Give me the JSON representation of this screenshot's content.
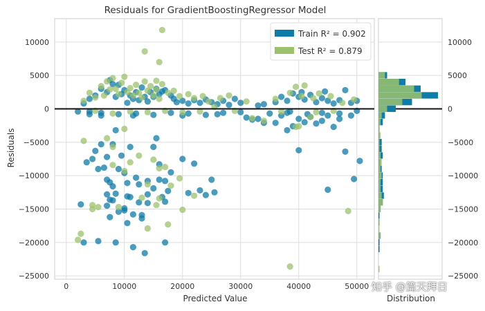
{
  "chart_data": {
    "type": "scatter",
    "title": "Residuals for GradientBoostingRegressor Model",
    "xlabel": "Predicted Value",
    "ylabel": "Residuals",
    "hist_xlabel": "Distribution",
    "xlim": [
      -2000,
      53000
    ],
    "ylim": [
      -25500,
      13500
    ],
    "xticks": [
      0,
      10000,
      20000,
      30000,
      40000,
      50000
    ],
    "yticks": [
      -25000,
      -20000,
      -15000,
      -10000,
      -5000,
      0,
      5000,
      10000
    ],
    "grid": true,
    "legend_position": "top-right",
    "legend": [
      {
        "label": "Train R² = 0.902",
        "color": "#0e7ba8"
      },
      {
        "label": "Test R² = 0.879",
        "color": "#9bc26b"
      }
    ],
    "zero_line": true,
    "series": [
      {
        "name": "Train",
        "color": "#0e7ba8",
        "points": [
          [
            2000,
            -400
          ],
          [
            2500,
            -14300
          ],
          [
            3000,
            -20000
          ],
          [
            3500,
            -8000
          ],
          [
            4000,
            -400
          ],
          [
            4500,
            -7500
          ],
          [
            5000,
            -6300
          ],
          [
            5500,
            -9000
          ],
          [
            5500,
            -19800
          ],
          [
            6000,
            -5300
          ],
          [
            6000,
            -600
          ],
          [
            6500,
            -8800
          ],
          [
            7000,
            -7200
          ],
          [
            7000,
            -10600
          ],
          [
            7000,
            -12800
          ],
          [
            7000,
            -14500
          ],
          [
            7500,
            -16200
          ],
          [
            7500,
            -11000
          ],
          [
            7500,
            -13600
          ],
          [
            8000,
            -13700
          ],
          [
            8000,
            -11600
          ],
          [
            8000,
            -5300
          ],
          [
            8500,
            -3200
          ],
          [
            8500,
            -20000
          ],
          [
            8500,
            -12700
          ],
          [
            9000,
            -15400
          ],
          [
            9000,
            -9000
          ],
          [
            9500,
            -7000
          ],
          [
            10000,
            -9600
          ],
          [
            10000,
            -15200
          ],
          [
            10000,
            -14900
          ],
          [
            10500,
            -11100
          ],
          [
            10500,
            -13100
          ],
          [
            10500,
            -17100
          ],
          [
            11000,
            -5700
          ],
          [
            11000,
            -13200
          ],
          [
            11500,
            -1000
          ],
          [
            11500,
            -15800
          ],
          [
            11500,
            -20700
          ],
          [
            12000,
            -10300
          ],
          [
            12500,
            -14000
          ],
          [
            12500,
            -11300
          ],
          [
            13000,
            -15900
          ],
          [
            13000,
            -16400
          ],
          [
            13500,
            -21600
          ],
          [
            14000,
            -10800
          ],
          [
            14000,
            -12800
          ],
          [
            14000,
            -14100
          ],
          [
            15000,
            -11900
          ],
          [
            15000,
            -5700
          ],
          [
            15500,
            -4400
          ],
          [
            16000,
            -8300
          ],
          [
            16000,
            -10600
          ],
          [
            16500,
            -13200
          ],
          [
            17000,
            -13900
          ],
          [
            17000,
            -10800
          ],
          [
            17000,
            -20000
          ],
          [
            17500,
            -12300
          ],
          [
            18000,
            -9500
          ],
          [
            20000,
            -1000
          ],
          [
            20000,
            -7500
          ],
          [
            21000,
            -12600
          ],
          [
            22000,
            -8200
          ],
          [
            23000,
            -12200
          ],
          [
            24000,
            -12900
          ],
          [
            25000,
            -10600
          ],
          [
            25500,
            -12500
          ],
          [
            26000,
            -800
          ],
          [
            31000,
            -1300
          ],
          [
            32000,
            -1600
          ],
          [
            33000,
            -1500
          ],
          [
            34000,
            -2100
          ],
          [
            36000,
            -2100
          ],
          [
            37000,
            -1000
          ],
          [
            38000,
            -600
          ],
          [
            38000,
            -3200
          ],
          [
            39000,
            -2600
          ],
          [
            40000,
            -1500
          ],
          [
            40000,
            -6200
          ],
          [
            41000,
            -2000
          ],
          [
            42000,
            -1200
          ],
          [
            43000,
            -2200
          ],
          [
            44000,
            -1800
          ],
          [
            45000,
            -1000
          ],
          [
            45000,
            -12100
          ],
          [
            46000,
            -2700
          ],
          [
            47000,
            -1500
          ],
          [
            48000,
            -6400
          ],
          [
            49000,
            -1000
          ],
          [
            49500,
            -10500
          ],
          [
            50500,
            -7800
          ],
          [
            3000,
            800
          ],
          [
            4000,
            1500
          ],
          [
            5000,
            2000
          ],
          [
            6000,
            3000
          ],
          [
            7000,
            2500
          ],
          [
            7500,
            4300
          ],
          [
            8000,
            3700
          ],
          [
            8500,
            1800
          ],
          [
            9000,
            3600
          ],
          [
            9500,
            2200
          ],
          [
            10000,
            2800
          ],
          [
            10500,
            900
          ],
          [
            11000,
            2000
          ],
          [
            11500,
            1500
          ],
          [
            12000,
            2500
          ],
          [
            12500,
            1300
          ],
          [
            13000,
            3200
          ],
          [
            13500,
            1800
          ],
          [
            14000,
            1100
          ],
          [
            14500,
            2500
          ],
          [
            15000,
            1800
          ],
          [
            15500,
            3000
          ],
          [
            16000,
            2200
          ],
          [
            16500,
            2600
          ],
          [
            17000,
            2800
          ],
          [
            18000,
            2000
          ],
          [
            18500,
            1500
          ],
          [
            19000,
            1000
          ],
          [
            20000,
            1200
          ],
          [
            21000,
            800
          ],
          [
            22000,
            1300
          ],
          [
            23000,
            900
          ],
          [
            24000,
            1400
          ],
          [
            25000,
            1000
          ],
          [
            26000,
            700
          ],
          [
            27000,
            1200
          ],
          [
            28000,
            600
          ],
          [
            29000,
            1500
          ],
          [
            30000,
            900
          ],
          [
            33000,
            500
          ],
          [
            34000,
            700
          ],
          [
            36000,
            1000
          ],
          [
            37000,
            1800
          ],
          [
            38000,
            1200
          ],
          [
            39000,
            2300
          ],
          [
            40000,
            1800
          ],
          [
            40500,
            2500
          ],
          [
            41000,
            1400
          ],
          [
            42000,
            2100
          ],
          [
            43000,
            1000
          ],
          [
            44000,
            1600
          ],
          [
            44500,
            2600
          ],
          [
            45000,
            1200
          ],
          [
            46000,
            800
          ],
          [
            47000,
            1300
          ],
          [
            48000,
            2800
          ],
          [
            49000,
            900
          ],
          [
            50000,
            1200
          ],
          [
            4000,
            -800
          ],
          [
            6000,
            -1000
          ],
          [
            9000,
            -800
          ],
          [
            12000,
            -700
          ],
          [
            15000,
            -900
          ],
          [
            18000,
            -600
          ],
          [
            21000,
            -700
          ],
          [
            24000,
            -900
          ],
          [
            27000,
            -600
          ],
          [
            30000,
            -500
          ],
          [
            35000,
            -700
          ],
          [
            38500,
            -400
          ],
          [
            41500,
            -800
          ],
          [
            44000,
            -600
          ],
          [
            47000,
            -700
          ],
          [
            50000,
            -300
          ]
        ]
      },
      {
        "name": "Test",
        "color": "#9bc26b",
        "points": [
          [
            2000,
            -19600
          ],
          [
            2500,
            -18700
          ],
          [
            3000,
            -4800
          ],
          [
            4500,
            -15000
          ],
          [
            4500,
            -14400
          ],
          [
            5500,
            -14700
          ],
          [
            7000,
            -4400
          ],
          [
            8000,
            -5700
          ],
          [
            8000,
            -8400
          ],
          [
            9000,
            -14700
          ],
          [
            10000,
            -9300
          ],
          [
            10000,
            -3000
          ],
          [
            11000,
            -8000
          ],
          [
            12500,
            -7000
          ],
          [
            13000,
            -13300
          ],
          [
            13500,
            8600
          ],
          [
            14000,
            -17900
          ],
          [
            14000,
            -11300
          ],
          [
            15000,
            -7600
          ],
          [
            15500,
            -14400
          ],
          [
            16000,
            -8900
          ],
          [
            16000,
            -13400
          ],
          [
            16500,
            11800
          ],
          [
            17500,
            -17300
          ],
          [
            17000,
            -8700
          ],
          [
            18000,
            -11500
          ],
          [
            19500,
            -10400
          ],
          [
            20000,
            -15100
          ],
          [
            22000,
            -13000
          ],
          [
            25500,
            300
          ],
          [
            38500,
            -23600
          ],
          [
            39500,
            -2700
          ],
          [
            40000,
            -2600
          ],
          [
            42000,
            -1200
          ],
          [
            48500,
            -15300
          ],
          [
            32000,
            -1400
          ],
          [
            34000,
            -1800
          ],
          [
            16000,
            7000
          ],
          [
            15500,
            4200
          ],
          [
            3000,
            1200
          ],
          [
            4000,
            2400
          ],
          [
            5000,
            1700
          ],
          [
            6000,
            3400
          ],
          [
            6500,
            2000
          ],
          [
            7000,
            4100
          ],
          [
            7500,
            2900
          ],
          [
            8000,
            4600
          ],
          [
            8500,
            3000
          ],
          [
            9000,
            2200
          ],
          [
            9500,
            3900
          ],
          [
            10000,
            4800
          ],
          [
            10500,
            2500
          ],
          [
            11000,
            3100
          ],
          [
            11500,
            2000
          ],
          [
            12000,
            3600
          ],
          [
            12500,
            2400
          ],
          [
            13000,
            1700
          ],
          [
            13500,
            4100
          ],
          [
            14000,
            2700
          ],
          [
            14500,
            3400
          ],
          [
            15000,
            2000
          ],
          [
            15500,
            2900
          ],
          [
            16000,
            1500
          ],
          [
            16500,
            3700
          ],
          [
            17500,
            2400
          ],
          [
            18500,
            2700
          ],
          [
            19500,
            1900
          ],
          [
            21000,
            2200
          ],
          [
            22000,
            1600
          ],
          [
            23500,
            1900
          ],
          [
            24500,
            1100
          ],
          [
            26500,
            1600
          ],
          [
            28000,
            2000
          ],
          [
            31000,
            1100
          ],
          [
            36000,
            1500
          ],
          [
            38500,
            2400
          ],
          [
            39500,
            3300
          ],
          [
            40500,
            1900
          ],
          [
            41000,
            3500
          ],
          [
            42500,
            1600
          ],
          [
            43500,
            2300
          ],
          [
            45500,
            1900
          ],
          [
            47500,
            900
          ],
          [
            49500,
            1400
          ],
          [
            5000,
            -300
          ],
          [
            8000,
            -700
          ],
          [
            11000,
            -400
          ],
          [
            14000,
            -500
          ],
          [
            17000,
            -300
          ],
          [
            20000,
            -500
          ],
          [
            23000,
            -400
          ],
          [
            29000,
            -300
          ],
          [
            37000,
            -400
          ],
          [
            43000,
            -500
          ],
          [
            46000,
            -300
          ]
        ]
      }
    ],
    "histogram": {
      "bins": [
        -25500,
        -24500,
        -23500,
        -22500,
        -21500,
        -20500,
        -19500,
        -18500,
        -17500,
        -16500,
        -15500,
        -14500,
        -13500,
        -12500,
        -11500,
        -10500,
        -9500,
        -8500,
        -7500,
        -6500,
        -5500,
        -4500,
        -3500,
        -2500,
        -1500,
        -500,
        500,
        1500,
        2500,
        3500,
        4500,
        5500
      ],
      "train": [
        0,
        0,
        0,
        0,
        1,
        1,
        2,
        0,
        1,
        1,
        2,
        4,
        5,
        4,
        4,
        4,
        3,
        2,
        4,
        3,
        3,
        1,
        1,
        4,
        6,
        16,
        31,
        55,
        39,
        25,
        8
      ],
      "test": [
        0,
        1,
        0,
        0,
        0,
        0,
        2,
        1,
        1,
        0,
        2,
        4,
        3,
        2,
        2,
        3,
        2,
        3,
        2,
        1,
        1,
        2,
        1,
        2,
        3,
        8,
        22,
        40,
        33,
        19,
        6
      ]
    }
  },
  "watermark": "知乎 @篇天拜日"
}
